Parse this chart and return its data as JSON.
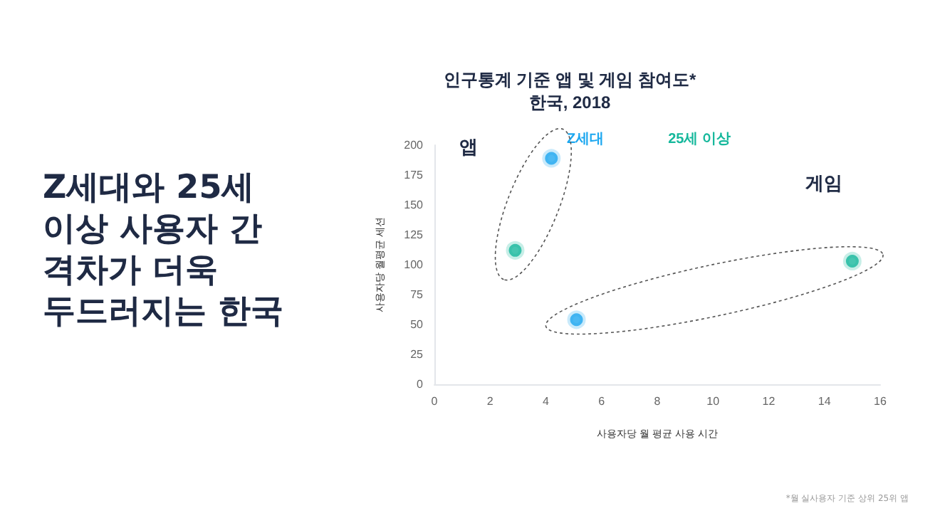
{
  "chart_data": {
    "type": "scatter",
    "title": "인구통계 기준 앱 및 게임 참여도*",
    "subtitle": "한국, 2018",
    "xlabel": "사용자당 월 평균 사용 시간",
    "ylabel": "사용자당 월평균 세션",
    "series": [
      {
        "name": "Z세대",
        "color": "#1ea8f0",
        "x": [
          4.2,
          5.1
        ],
        "values": [
          189,
          54
        ]
      },
      {
        "name": "25세 이상",
        "color": "#16b89c",
        "x": [
          2.9,
          15
        ],
        "values": [
          112,
          103
        ]
      }
    ],
    "xlim": [
      0,
      16
    ],
    "xticks": [
      0,
      2,
      4,
      6,
      8,
      10,
      12,
      14,
      16
    ],
    "ylim": [
      0,
      200
    ],
    "yticks": [
      0,
      25,
      50,
      75,
      100,
      125,
      150,
      175,
      200
    ],
    "grid": false,
    "legend": "top",
    "marker": "circle",
    "annotations": [
      "Z세대와 25세 이상 사용자 간 격차가 더욱 두드러지는 한국",
      "앱",
      "게임",
      "*월 실사용자 기준 상위 25위 앱"
    ]
  }
}
